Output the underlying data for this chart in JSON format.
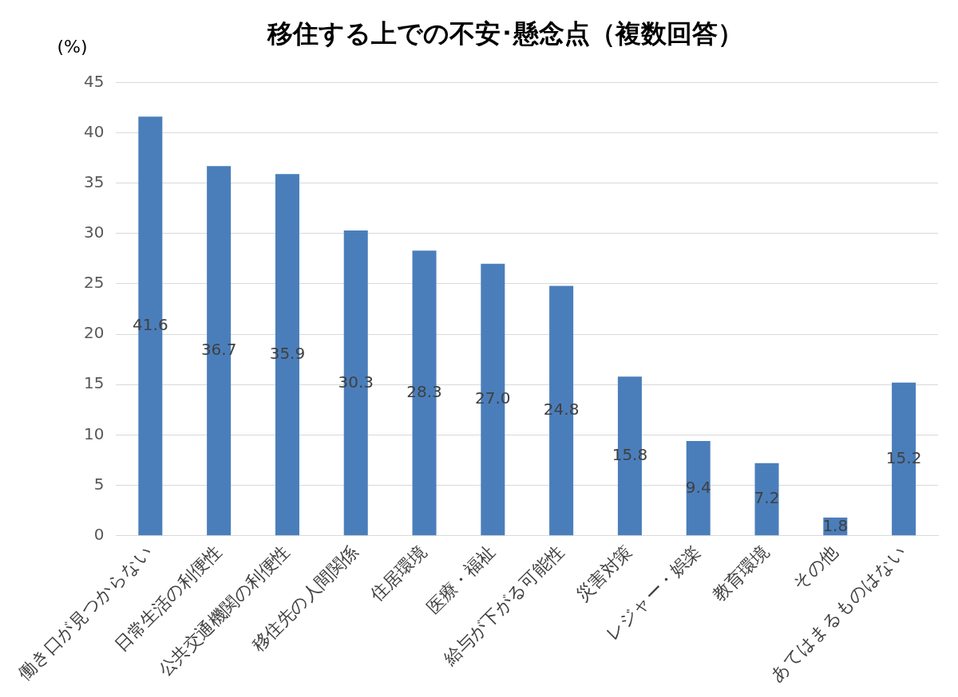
{
  "chart_data": {
    "type": "bar",
    "title": "移住する上での不安･懸念点（複数回答）",
    "ylabel": "(%)",
    "categories": [
      "働き口が見つからない",
      "日常生活の利便性",
      "公共交通機関の利便性",
      "移住先の人間関係",
      "住居環境",
      "医療・福祉",
      "給与が下がる可能性",
      "災害対策",
      "レジャー・娯楽",
      "教育環境",
      "その他",
      "あてはまるものはない"
    ],
    "values": [
      41.6,
      36.7,
      35.9,
      30.3,
      28.3,
      27.0,
      24.8,
      15.8,
      9.4,
      7.2,
      1.8,
      15.2
    ],
    "color": "#4a7ebb",
    "ylim": [
      0,
      45
    ],
    "yticks": [
      0,
      5,
      10,
      15,
      20,
      25,
      30,
      35,
      40,
      45
    ],
    "value_labels": [
      "41.6",
      "36.7",
      "35.9",
      "30.3",
      "28.3",
      "27.0",
      "24.8",
      "15.8",
      "9.4",
      "7.2",
      "1.8",
      "15.2"
    ],
    "grid": "y",
    "legend": false
  }
}
